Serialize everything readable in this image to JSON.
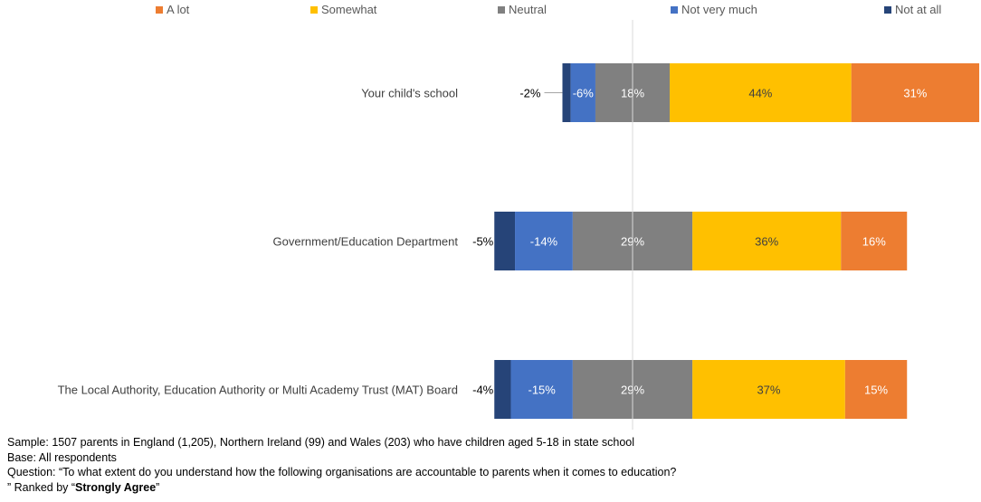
{
  "colors": {
    "a_lot": "#ED7D31",
    "somewhat": "#FFC000",
    "neutral": "#808080",
    "not_very_much": "#4472C4",
    "not_at_all": "#264478"
  },
  "chart_data": {
    "type": "bar",
    "orientation": "horizontal",
    "stacked": true,
    "diverging": true,
    "legend_position": "top",
    "grid": false,
    "categories": [
      "Your child's school",
      "Government/Education Department",
      "The Local Authority, Education Authority or Multi Academy Trust (MAT) Board"
    ],
    "series": [
      {
        "name": "A lot",
        "values": [
          31,
          16,
          15
        ],
        "labels": [
          "31%",
          "16%",
          "15%"
        ]
      },
      {
        "name": "Somewhat",
        "values": [
          44,
          36,
          37
        ],
        "labels": [
          "44%",
          "36%",
          "37%"
        ]
      },
      {
        "name": "Neutral",
        "values": [
          18,
          29,
          29
        ],
        "labels": [
          "18%",
          "29%",
          "29%"
        ]
      },
      {
        "name": "Not very much",
        "values": [
          -6,
          -14,
          -15
        ],
        "labels": [
          "-6%",
          "-14%",
          "-15%"
        ]
      },
      {
        "name": "Not at all",
        "values": [
          -2,
          -5,
          -4
        ],
        "labels": [
          "-2%",
          "-5%",
          "-4%"
        ]
      }
    ]
  },
  "footer": {
    "sample": "Sample: 1507 parents in England (1,205), Northern Ireland (99) and Wales (203) who have children aged 5-18 in state school",
    "base": "Base: All respondents",
    "question": "Question: “To what extent do you understand how the following organisations are accountable to parents when it comes to education?",
    "ranked_prefix": "” Ranked by “",
    "ranked_bold": "Strongly Agree",
    "ranked_suffix": "”"
  }
}
